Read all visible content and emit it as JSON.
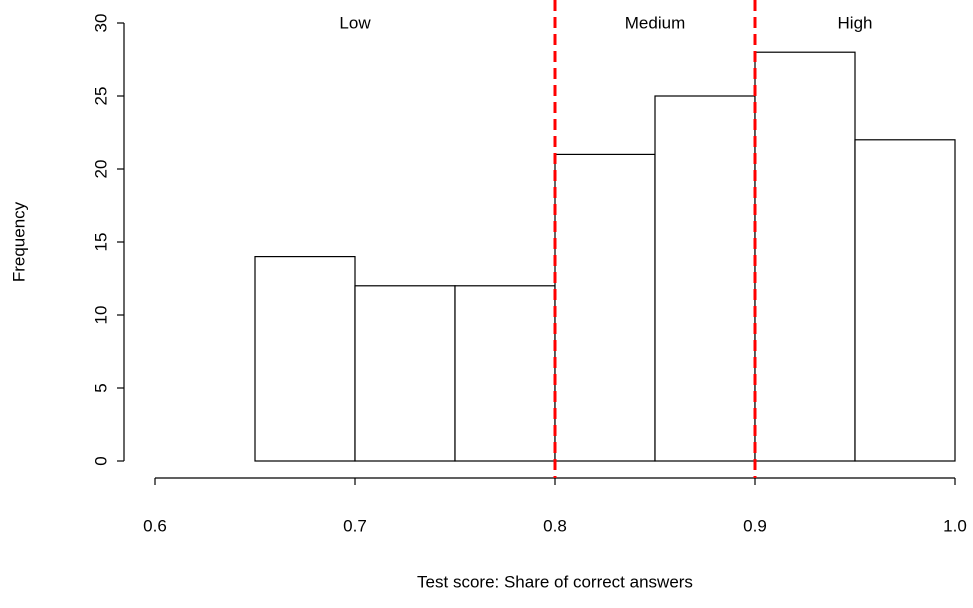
{
  "chart_data": {
    "type": "histogram",
    "xlabel": "Test score: Share of correct answers",
    "ylabel": "Frequency",
    "bins": [
      0.65,
      0.7,
      0.75,
      0.8,
      0.85,
      0.9,
      0.95,
      1
    ],
    "values": [
      14,
      12,
      12,
      21,
      25,
      28,
      22
    ],
    "color": "#ffffff",
    "edgecolor": "#000000",
    "xlim": [
      0.6,
      1
    ],
    "xticks": [
      0.6,
      0.7,
      0.8,
      0.9,
      {
        "value": 1,
        "label": "1.0"
      }
    ],
    "ylim": [
      0,
      30
    ],
    "yticks": [
      0,
      5,
      10,
      15,
      20,
      25,
      30
    ],
    "vlines": [
      {
        "x": 0.8,
        "color": "#ff0000"
      },
      {
        "x": 0.9,
        "color": "#ff0000"
      }
    ],
    "annotations": [
      {
        "text": "Low",
        "x": 0.7
      },
      {
        "text": "Medium",
        "x": 0.85
      },
      {
        "text": "High",
        "x": 0.95
      }
    ]
  }
}
